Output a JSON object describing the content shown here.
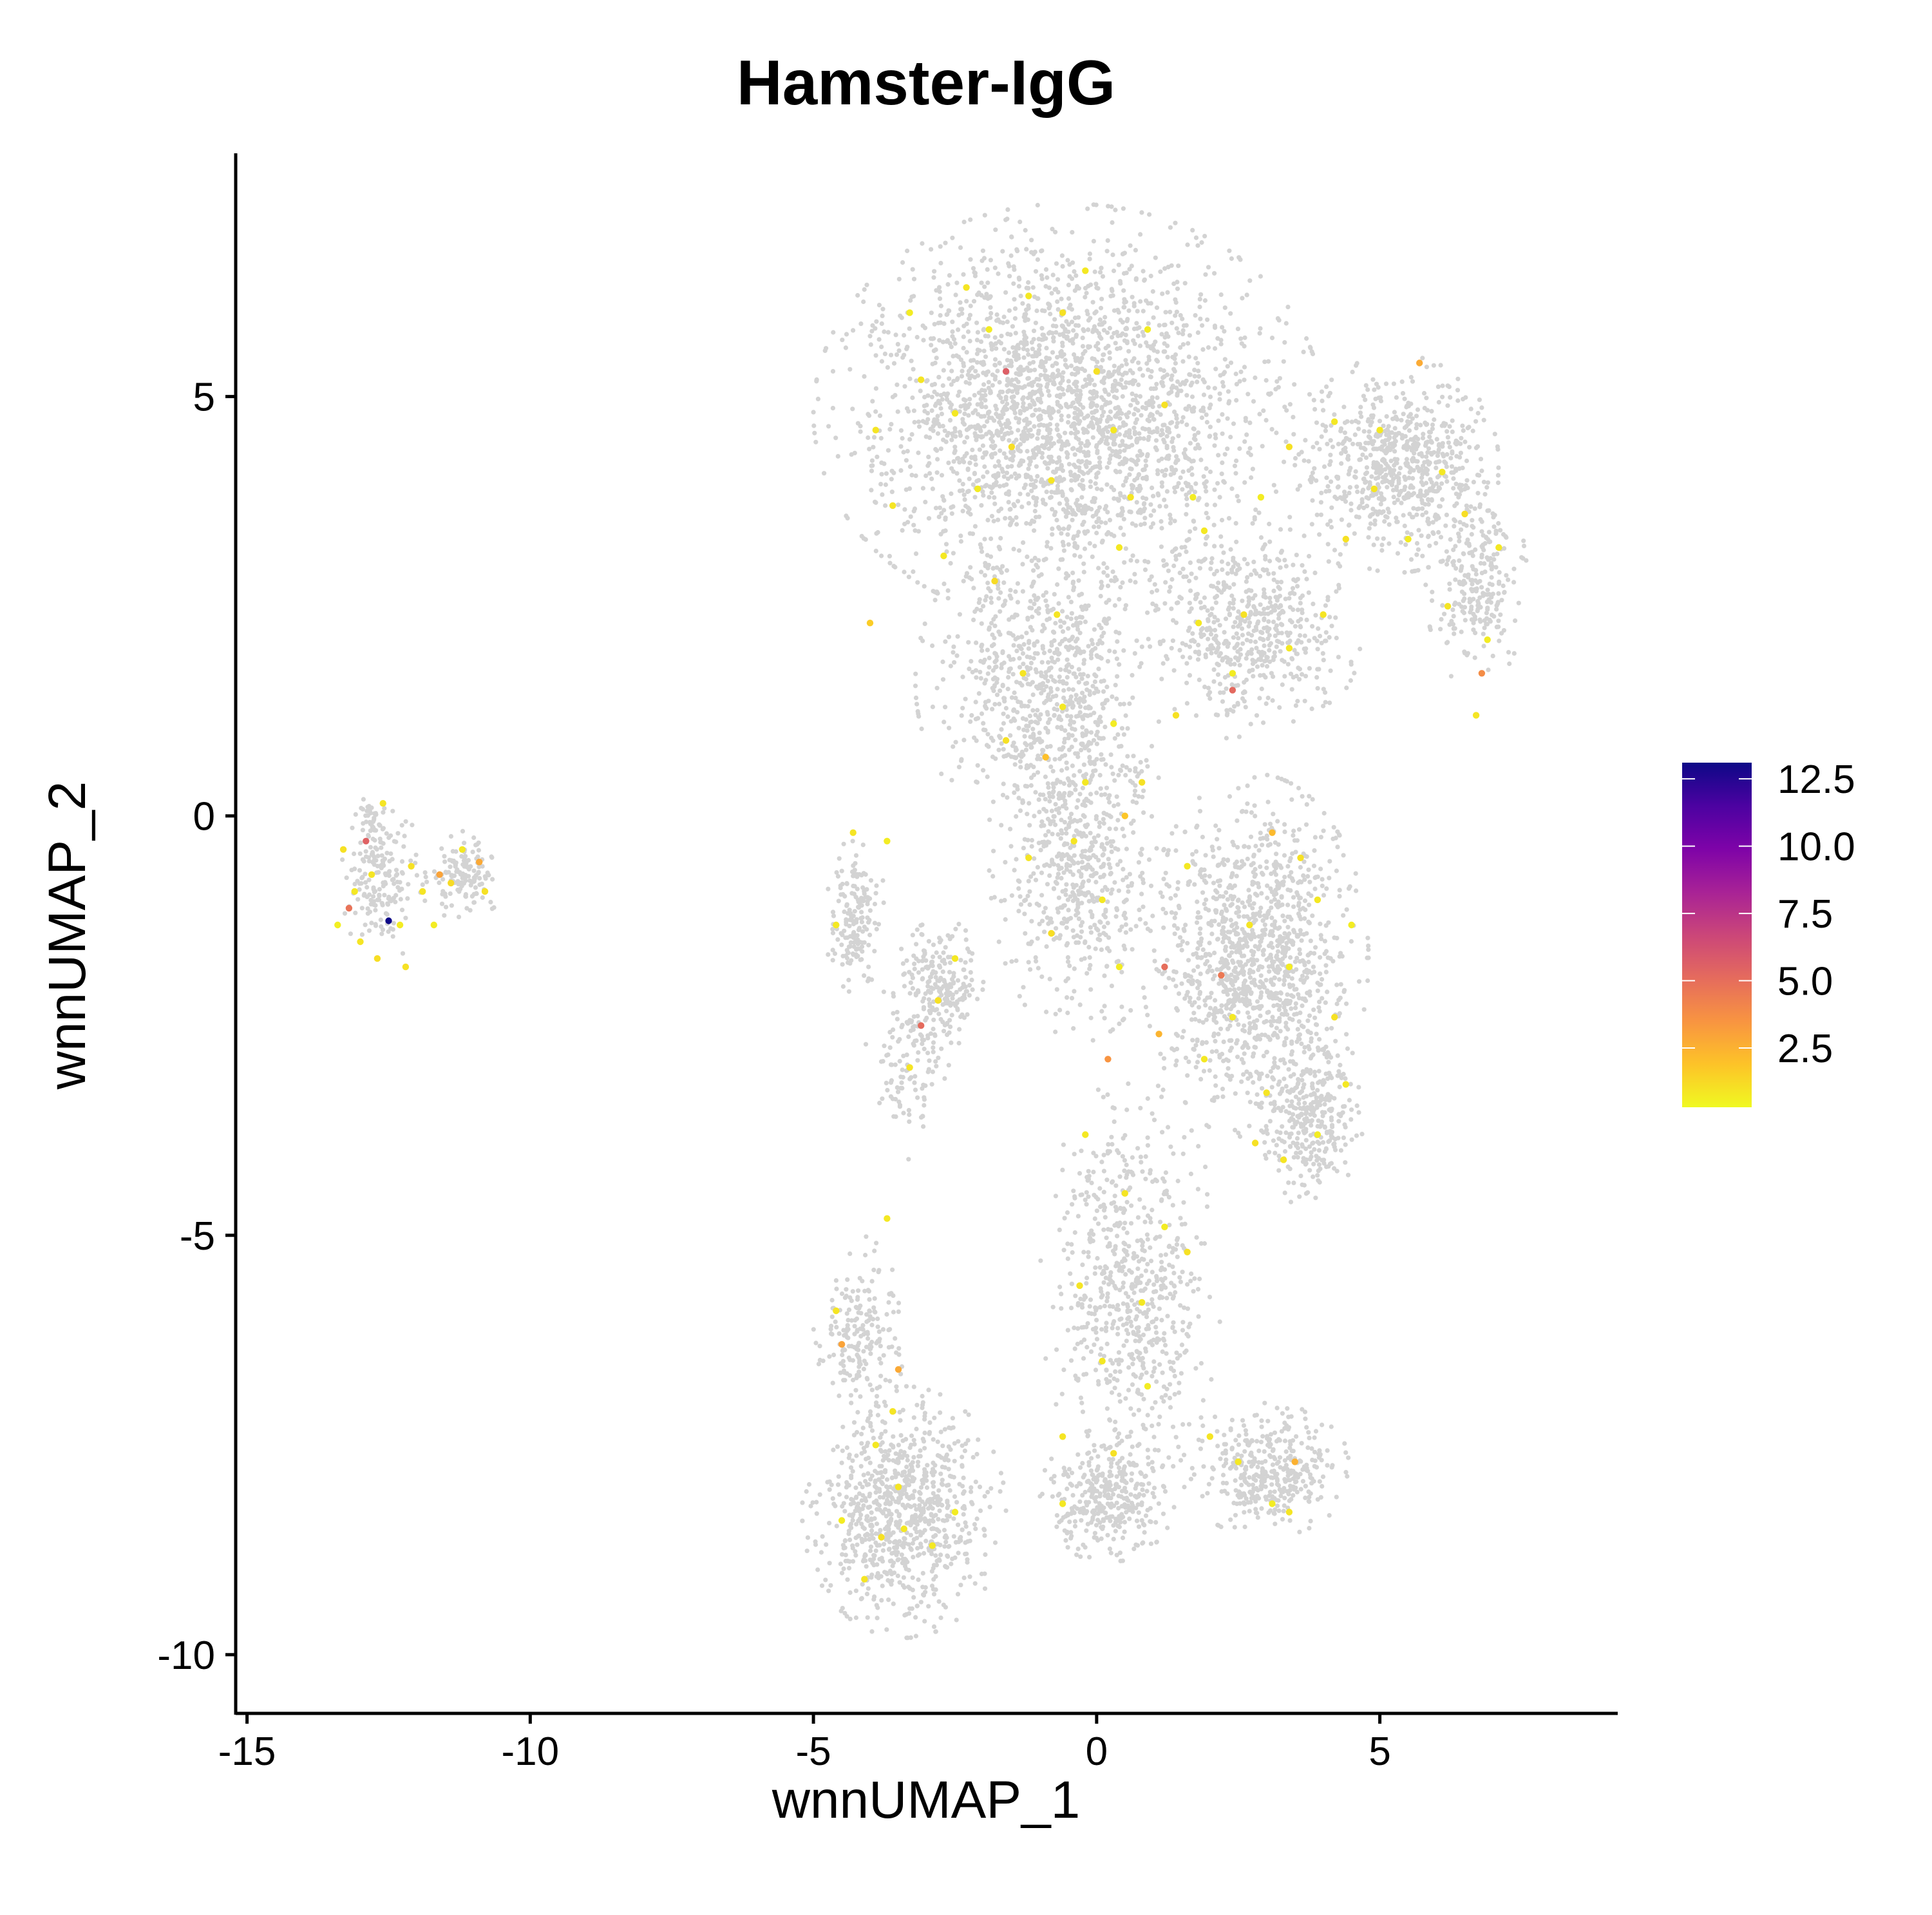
{
  "colors": {
    "background": "#ffffff",
    "axis": "#000000",
    "cell_background": "#d3d3d3",
    "palette": [
      "#f0f921",
      "#fdc328",
      "#f89441",
      "#e56b5d",
      "#cb4679",
      "#a82296",
      "#7e03a8",
      "#4c02a1",
      "#0d0887"
    ]
  },
  "chart_data": {
    "type": "scatter",
    "title": "Hamster-IgG",
    "xlabel": "wnnUMAP_1",
    "ylabel": "wnnUMAP_2",
    "xlim": [
      -15.2,
      9.2
    ],
    "ylim": [
      -10.7,
      7.9
    ],
    "xticks": [
      {
        "value": -15,
        "label": "-15"
      },
      {
        "value": -10,
        "label": "-10"
      },
      {
        "value": -5,
        "label": "-5"
      },
      {
        "value": 0,
        "label": "0"
      },
      {
        "value": 5,
        "label": "5"
      }
    ],
    "yticks": [
      {
        "value": 5,
        "label": "5"
      },
      {
        "value": 0,
        "label": "0"
      },
      {
        "value": -5,
        "label": "-5"
      },
      {
        "value": -10,
        "label": "-10"
      }
    ],
    "color_scale": {
      "min": 0.3,
      "max": 13.1,
      "ticks": [
        {
          "value": 12.5,
          "label": "12.5"
        },
        {
          "value": 10.0,
          "label": "10.0"
        },
        {
          "value": 7.5,
          "label": "7.5"
        },
        {
          "value": 5.0,
          "label": "5.0"
        },
        {
          "value": 2.5,
          "label": "2.5"
        }
      ],
      "legend_position": "right"
    },
    "grid": false,
    "background_clusters": [
      {
        "cx": -12.6,
        "cy": -0.8,
        "rx": 0.75,
        "ry": 0.95,
        "n": 180
      },
      {
        "cx": -11.2,
        "cy": -0.7,
        "rx": 0.8,
        "ry": 0.55,
        "n": 150
      },
      {
        "cx": -12.8,
        "cy": -0.05,
        "rx": 0.35,
        "ry": 0.3,
        "n": 30
      },
      {
        "cx": -0.5,
        "cy": 4.8,
        "rx": 4.5,
        "ry": 2.5,
        "n": 2600
      },
      {
        "cx": 5.3,
        "cy": 4.2,
        "rx": 1.8,
        "ry": 1.3,
        "n": 700
      },
      {
        "cx": 6.7,
        "cy": 2.8,
        "rx": 0.9,
        "ry": 1.3,
        "n": 260
      },
      {
        "cx": 2.7,
        "cy": 2.2,
        "rx": 2.0,
        "ry": 1.3,
        "n": 550
      },
      {
        "cx": -1.0,
        "cy": 1.6,
        "rx": 2.2,
        "ry": 1.8,
        "n": 700
      },
      {
        "cx": -0.3,
        "cy": -0.5,
        "rx": 1.6,
        "ry": 2.2,
        "n": 650
      },
      {
        "cx": 2.8,
        "cy": -1.7,
        "rx": 2.0,
        "ry": 2.2,
        "n": 1250
      },
      {
        "cx": 3.8,
        "cy": -3.6,
        "rx": 0.9,
        "ry": 1.1,
        "n": 300
      },
      {
        "cx": -4.3,
        "cy": -1.2,
        "rx": 0.6,
        "ry": 0.9,
        "n": 170
      },
      {
        "cx": -2.8,
        "cy": -2.0,
        "rx": 0.8,
        "ry": 0.8,
        "n": 220
      },
      {
        "cx": -3.3,
        "cy": -3.0,
        "rx": 0.8,
        "ry": 1.1,
        "n": 110
      },
      {
        "cx": 0.6,
        "cy": -5.6,
        "rx": 1.6,
        "ry": 2.5,
        "n": 650
      },
      {
        "cx": 0.2,
        "cy": -8.1,
        "rx": 1.2,
        "ry": 0.8,
        "n": 350
      },
      {
        "cx": 3.0,
        "cy": -7.8,
        "rx": 1.5,
        "ry": 0.8,
        "n": 380
      },
      {
        "cx": -3.4,
        "cy": -8.3,
        "rx": 1.8,
        "ry": 1.5,
        "n": 850
      },
      {
        "cx": -4.2,
        "cy": -6.2,
        "rx": 0.8,
        "ry": 1.2,
        "n": 200
      }
    ],
    "expressing_points": [
      [
        -12.5,
        -1.25,
        13.1
      ],
      [
        -12.9,
        -0.3,
        5.5
      ],
      [
        -13.2,
        -1.1,
        4.8
      ],
      [
        -11.6,
        -0.7,
        3.0
      ],
      [
        -10.9,
        -0.55,
        2.8
      ],
      [
        -13.3,
        -0.4,
        1.0
      ],
      [
        -13.1,
        -0.9,
        0.8
      ],
      [
        -13.0,
        -1.5,
        0.9
      ],
      [
        -12.7,
        -1.7,
        1.1
      ],
      [
        -12.3,
        -1.3,
        0.7
      ],
      [
        -12.1,
        -0.6,
        1.0
      ],
      [
        -11.9,
        -0.9,
        0.9
      ],
      [
        -11.4,
        -0.8,
        1.2
      ],
      [
        -11.2,
        -0.4,
        0.8
      ],
      [
        -10.8,
        -0.9,
        1.0
      ],
      [
        -12.6,
        0.15,
        0.9
      ],
      [
        -13.4,
        -1.3,
        0.6
      ],
      [
        -12.2,
        -1.8,
        1.0
      ],
      [
        -11.7,
        -1.3,
        0.7
      ],
      [
        -12.8,
        -0.7,
        0.9
      ],
      [
        -1.6,
        5.3,
        5.6
      ],
      [
        2.4,
        1.5,
        5.2
      ],
      [
        6.8,
        1.7,
        3.8
      ],
      [
        1.2,
        -1.8,
        5.0
      ],
      [
        2.2,
        -1.9,
        4.6
      ],
      [
        -3.1,
        -2.5,
        5.1
      ],
      [
        0.2,
        -2.9,
        3.5
      ],
      [
        -4.5,
        -6.3,
        3.0
      ],
      [
        -3.5,
        -6.6,
        2.8
      ],
      [
        3.5,
        -7.7,
        2.5
      ],
      [
        5.7,
        5.4,
        2.7
      ],
      [
        3.1,
        -0.2,
        2.2
      ],
      [
        -0.9,
        0.7,
        2.0
      ],
      [
        0.5,
        0.0,
        1.8
      ],
      [
        -4.0,
        2.3,
        1.6
      ],
      [
        1.1,
        -2.6,
        2.4
      ],
      [
        -2.3,
        6.3,
        0.9
      ],
      [
        -1.9,
        5.8,
        0.7
      ],
      [
        -1.2,
        6.2,
        0.8
      ],
      [
        -0.6,
        6.0,
        1.0
      ],
      [
        -0.2,
        6.5,
        0.8
      ],
      [
        0.9,
        5.8,
        0.7
      ],
      [
        -3.1,
        5.2,
        0.9
      ],
      [
        -2.5,
        4.8,
        0.8
      ],
      [
        -1.5,
        4.4,
        1.1
      ],
      [
        -0.8,
        4.0,
        0.9
      ],
      [
        0.3,
        4.6,
        0.8
      ],
      [
        1.2,
        4.9,
        1.0
      ],
      [
        1.7,
        3.8,
        0.7
      ],
      [
        -3.6,
        3.7,
        0.9
      ],
      [
        -2.7,
        3.1,
        0.8
      ],
      [
        -1.8,
        2.8,
        1.2
      ],
      [
        -0.7,
        2.4,
        0.9
      ],
      [
        0.4,
        3.2,
        0.8
      ],
      [
        -3.9,
        4.6,
        0.9
      ],
      [
        -3.3,
        6.0,
        0.7
      ],
      [
        0.0,
        5.3,
        1.0
      ],
      [
        0.6,
        3.8,
        0.9
      ],
      [
        1.9,
        3.4,
        0.8
      ],
      [
        -2.1,
        3.9,
        0.7
      ],
      [
        3.4,
        4.4,
        1.0
      ],
      [
        4.2,
        4.7,
        0.8
      ],
      [
        4.9,
        3.9,
        0.9
      ],
      [
        5.5,
        3.3,
        0.7
      ],
      [
        6.1,
        4.1,
        0.8
      ],
      [
        6.5,
        3.6,
        1.1
      ],
      [
        7.1,
        3.2,
        0.8
      ],
      [
        6.2,
        2.5,
        0.9
      ],
      [
        6.9,
        2.1,
        0.7
      ],
      [
        5.0,
        4.6,
        0.8
      ],
      [
        4.4,
        3.3,
        1.0
      ],
      [
        6.7,
        1.2,
        0.9
      ],
      [
        2.9,
        3.8,
        0.7
      ],
      [
        2.6,
        2.4,
        1.0
      ],
      [
        3.4,
        2.0,
        0.8
      ],
      [
        4.0,
        2.4,
        0.9
      ],
      [
        1.8,
        2.3,
        0.8
      ],
      [
        2.4,
        1.7,
        0.7
      ],
      [
        1.4,
        1.2,
        1.0
      ],
      [
        -1.3,
        1.7,
        0.9
      ],
      [
        -0.6,
        1.3,
        0.8
      ],
      [
        0.3,
        1.1,
        0.7
      ],
      [
        -1.6,
        0.9,
        1.0
      ],
      [
        -0.4,
        -0.3,
        0.9
      ],
      [
        0.1,
        -1.0,
        0.8
      ],
      [
        -0.8,
        -1.4,
        1.1
      ],
      [
        0.4,
        -1.8,
        0.7
      ],
      [
        -1.2,
        -0.5,
        0.9
      ],
      [
        -0.2,
        0.4,
        0.8
      ],
      [
        0.8,
        0.4,
        1.0
      ],
      [
        1.6,
        -0.6,
        0.8
      ],
      [
        2.7,
        -1.3,
        0.9
      ],
      [
        3.4,
        -1.8,
        0.7
      ],
      [
        4.2,
        -2.4,
        1.0
      ],
      [
        2.4,
        -2.4,
        0.8
      ],
      [
        3.0,
        -3.3,
        0.9
      ],
      [
        3.9,
        -1.0,
        0.8
      ],
      [
        4.5,
        -1.3,
        0.7
      ],
      [
        3.6,
        -0.5,
        1.0
      ],
      [
        1.9,
        -2.9,
        0.8
      ],
      [
        3.3,
        -4.1,
        0.9
      ],
      [
        3.9,
        -3.8,
        0.7
      ],
      [
        4.4,
        -3.2,
        0.8
      ],
      [
        2.8,
        -3.9,
        1.0
      ],
      [
        -4.6,
        -1.3,
        0.8
      ],
      [
        -4.3,
        -0.2,
        0.9
      ],
      [
        -3.7,
        -0.3,
        0.7
      ],
      [
        -2.8,
        -2.2,
        1.0
      ],
      [
        -2.5,
        -1.7,
        0.8
      ],
      [
        -3.3,
        -3.0,
        0.9
      ],
      [
        -0.2,
        -3.8,
        0.8
      ],
      [
        0.5,
        -4.5,
        0.9
      ],
      [
        1.2,
        -4.9,
        0.7
      ],
      [
        1.6,
        -5.2,
        1.0
      ],
      [
        0.8,
        -5.8,
        0.8
      ],
      [
        -0.3,
        -5.6,
        0.9
      ],
      [
        0.1,
        -6.5,
        0.8
      ],
      [
        0.9,
        -6.8,
        0.7
      ],
      [
        -0.6,
        -7.4,
        0.9
      ],
      [
        0.3,
        -7.6,
        1.0
      ],
      [
        -0.6,
        -8.2,
        0.8
      ],
      [
        2.0,
        -7.4,
        0.9
      ],
      [
        2.5,
        -7.7,
        0.8
      ],
      [
        3.1,
        -8.2,
        0.7
      ],
      [
        3.4,
        -8.3,
        0.9
      ],
      [
        -3.9,
        -7.5,
        0.8
      ],
      [
        -3.5,
        -8.0,
        0.9
      ],
      [
        -3.8,
        -8.6,
        1.0
      ],
      [
        -3.4,
        -8.5,
        0.8
      ],
      [
        -4.5,
        -8.4,
        0.7
      ],
      [
        -4.1,
        -9.1,
        0.9
      ],
      [
        -2.9,
        -8.7,
        0.8
      ],
      [
        -4.6,
        -5.9,
        0.9
      ],
      [
        -3.7,
        -4.8,
        0.8
      ],
      [
        -2.5,
        -8.3,
        0.7
      ],
      [
        -3.6,
        -7.1,
        0.9
      ]
    ]
  }
}
